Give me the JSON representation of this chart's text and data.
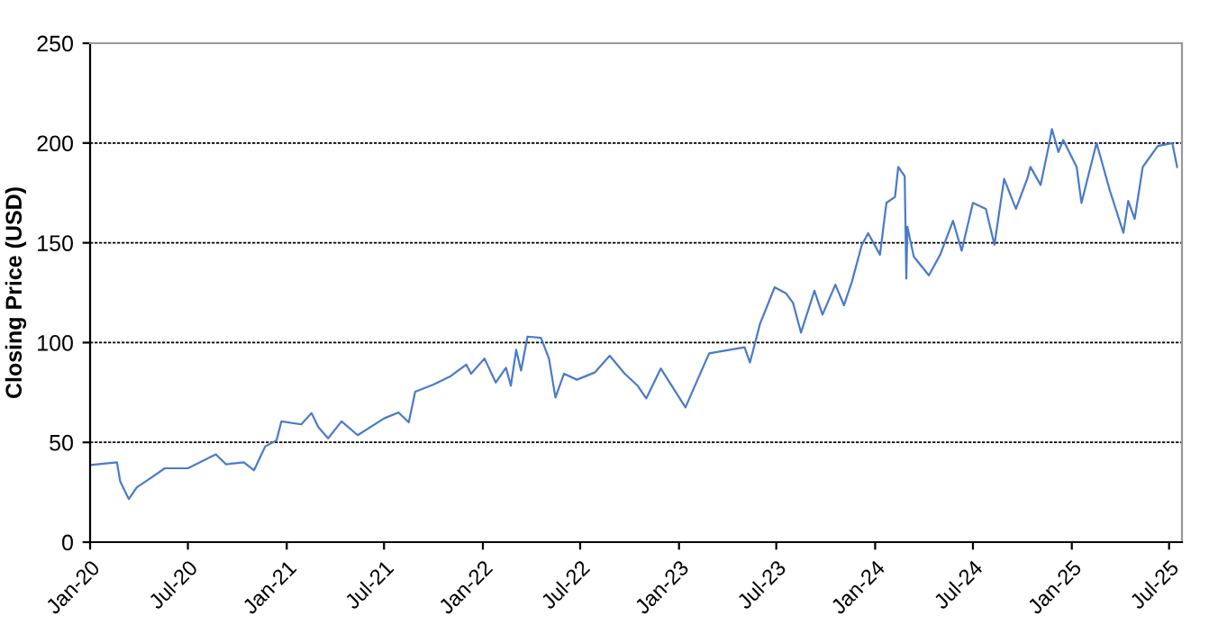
{
  "chart_data": {
    "type": "line",
    "ylabel": "Closing Price (USD)",
    "x": [
      "2020-01-01",
      "2020-02-20",
      "2020-02-26",
      "2020-03-13",
      "2020-03-28",
      "2020-04-22",
      "2020-05-19",
      "2020-07-01",
      "2020-08-11",
      "2020-08-22",
      "2020-09-10",
      "2020-10-13",
      "2020-11-01",
      "2020-11-22",
      "2020-12-13",
      "2020-12-22",
      "2021-01-28",
      "2021-02-16",
      "2021-03-01",
      "2021-03-19",
      "2021-04-13",
      "2021-05-13",
      "2021-07-01",
      "2021-07-28",
      "2021-08-16",
      "2021-08-28",
      "2021-10-01",
      "2021-11-01",
      "2021-12-01",
      "2021-12-10",
      "2022-01-04",
      "2022-01-25",
      "2022-02-13",
      "2022-02-22",
      "2022-03-04",
      "2022-03-13",
      "2022-03-25",
      "2022-04-19",
      "2022-05-04",
      "2022-05-16",
      "2022-06-01",
      "2022-06-25",
      "2022-07-28",
      "2022-08-25",
      "2022-09-22",
      "2022-10-16",
      "2022-11-01",
      "2022-11-28",
      "2023-01-13",
      "2023-02-26",
      "2023-05-03",
      "2023-05-13",
      "2023-06-01",
      "2023-06-28",
      "2023-07-19",
      "2023-08-01",
      "2023-08-16",
      "2023-09-10",
      "2023-09-25",
      "2023-10-19",
      "2023-11-04",
      "2023-11-19",
      "2023-12-07",
      "2023-12-19",
      "2024-01-10",
      "2024-01-22",
      "2024-02-07",
      "2024-02-13",
      "2024-02-25",
      "2024-02-28",
      "2024-03-01",
      "2024-03-13",
      "2024-04-10",
      "2024-05-01",
      "2024-05-25",
      "2024-06-10",
      "2024-07-01",
      "2024-07-25",
      "2024-08-10",
      "2024-08-28",
      "2024-09-19",
      "2024-10-10",
      "2024-10-16",
      "2024-11-04",
      "2024-11-19",
      "2024-11-25",
      "2024-12-07",
      "2024-12-16",
      "2025-01-10",
      "2025-01-19",
      "2025-02-16",
      "2025-03-13",
      "2025-04-07",
      "2025-04-16",
      "2025-04-28",
      "2025-05-13",
      "2025-06-10",
      "2025-07-07",
      "2025-07-16"
    ],
    "series": [
      {
        "color": "#4a7bc8",
        "values": [
          38.6,
          40,
          30.5,
          21.6,
          27.5,
          32,
          37,
          37,
          42.5,
          44,
          39,
          40,
          36,
          48,
          51,
          60.5,
          59,
          64.7,
          57.5,
          52,
          60.5,
          53.6,
          62,
          65,
          60,
          75.4,
          79,
          83,
          89,
          84.4,
          92,
          80,
          87.4,
          78.4,
          96.4,
          86,
          103,
          102.4,
          92,
          72.5,
          84.4,
          81.4,
          85,
          93.4,
          84.4,
          78.4,
          72,
          87,
          67.5,
          94.6,
          97.6,
          90,
          109.6,
          127.7,
          124.7,
          120,
          105,
          126,
          114,
          129,
          118.7,
          130.7,
          148.8,
          154.8,
          144,
          170,
          173,
          188,
          183.4,
          132,
          158,
          143,
          133.7,
          144,
          161,
          146,
          170,
          167,
          149,
          182,
          167,
          182,
          188,
          179,
          198.5,
          207,
          195.5,
          201.5,
          188,
          170,
          200,
          176,
          155,
          171,
          162,
          188,
          198.5,
          200,
          188
        ]
      }
    ],
    "xlim": [
      "2020-01-01",
      "2025-07-25"
    ],
    "xticks": [
      {
        "value": "2020-01-01",
        "label": "Jan-20"
      },
      {
        "value": "2020-07-01",
        "label": "Jul-20"
      },
      {
        "value": "2021-01-01",
        "label": "Jan-21"
      },
      {
        "value": "2021-07-01",
        "label": "Jul-21"
      },
      {
        "value": "2022-01-01",
        "label": "Jan-22"
      },
      {
        "value": "2022-07-01",
        "label": "Jul-22"
      },
      {
        "value": "2023-01-01",
        "label": "Jan-23"
      },
      {
        "value": "2023-07-01",
        "label": "Jul-23"
      },
      {
        "value": "2024-01-01",
        "label": "Jan-24"
      },
      {
        "value": "2024-07-01",
        "label": "Jul-24"
      },
      {
        "value": "2025-01-01",
        "label": "Jan-25"
      },
      {
        "value": "2025-07-01",
        "label": "Jul-25"
      }
    ],
    "ylim": [
      0,
      250
    ],
    "yticks": [
      0,
      50,
      100,
      150,
      200,
      250
    ],
    "grid": "y",
    "legend": false,
    "marker": "none",
    "line_style": "solid"
  }
}
